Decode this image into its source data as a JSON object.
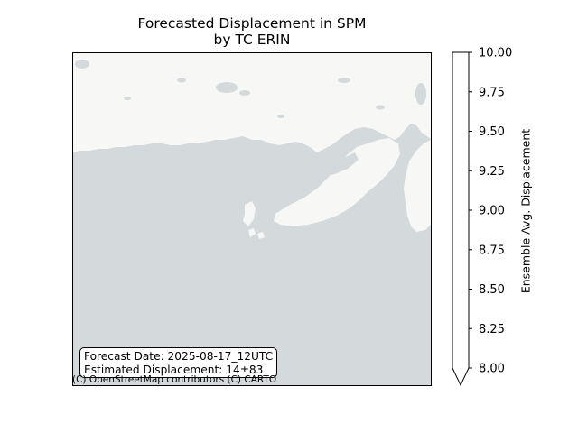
{
  "title": {
    "line1": "Forecasted Displacement in SPM",
    "line2": "by TC ERIN"
  },
  "info_box": {
    "forecast_date": "Forecast Date: 2025-08-17_12UTC",
    "estimated_displacement": "Estimated Displacement: 14±83"
  },
  "attribution": "(C) OpenStreetMap contributors (C) CARTO",
  "colors": {
    "ocean": "#d4d9db",
    "land": "#f7f7f5",
    "lakes": "#d4d9db",
    "colorbar_fill": "#ffffff"
  },
  "colorbar": {
    "label": "Ensemble Avg. Displacement",
    "min": 8.0,
    "max": 10.0,
    "extend": "min",
    "ticks": [
      "8.00",
      "8.25",
      "8.50",
      "8.75",
      "9.00",
      "9.25",
      "9.50",
      "9.75",
      "10.00"
    ]
  }
}
